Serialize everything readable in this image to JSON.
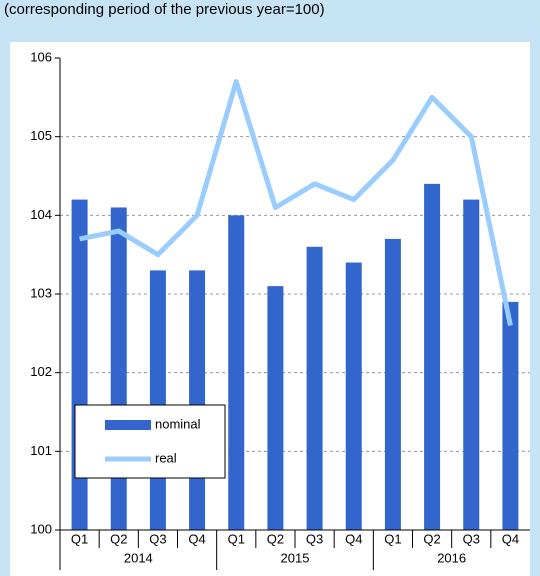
{
  "chart_data": {
    "type": "bar_line",
    "subtitle": "(corresponding period of the previous year=100)",
    "categories": [
      "Q1",
      "Q2",
      "Q3",
      "Q4",
      "Q1",
      "Q2",
      "Q3",
      "Q4",
      "Q1",
      "Q2",
      "Q3",
      "Q4"
    ],
    "groups": [
      "2014",
      "2015",
      "2016"
    ],
    "series": [
      {
        "name": "nominal",
        "type": "bar",
        "color": "#3366cc",
        "values": [
          104.2,
          104.1,
          103.3,
          103.3,
          104.0,
          103.1,
          103.6,
          103.4,
          103.7,
          104.4,
          104.2,
          102.9
        ]
      },
      {
        "name": "real",
        "type": "line",
        "color": "#99ccff",
        "values": [
          103.7,
          103.8,
          103.5,
          104.0,
          105.7,
          104.1,
          104.4,
          104.2,
          104.7,
          105.5,
          105.0,
          102.6
        ]
      }
    ],
    "ylim": [
      100,
      106
    ],
    "yticks": [
      100,
      101,
      102,
      103,
      104,
      105,
      106
    ],
    "grid": true,
    "legend": "lower left"
  }
}
